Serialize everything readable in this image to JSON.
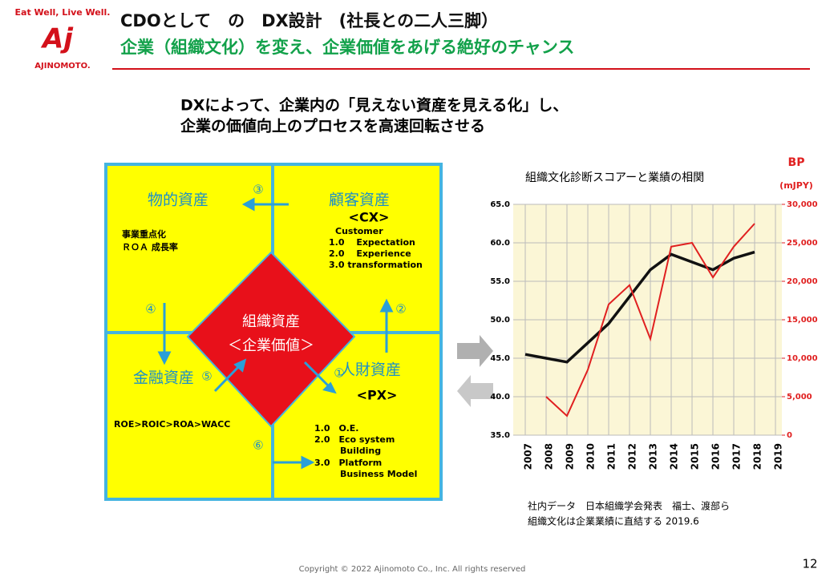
{
  "header": {
    "tagline": "Eat Well, Live Well.",
    "logo_mark": "Aj",
    "logo_text": "AJINOMOTO.",
    "title": "CDOとして　の　DX設計　(社長との二人三脚）",
    "subtitle": "企業（組織文化）を変え、企業価値をあげる絶好のチャンス"
  },
  "lead": [
    "DXによって、企業内の「見えない資産を見える化」し、",
    "企業の価値向上のプロセスを高速回転させる"
  ],
  "diagram": {
    "physical": "物的資産",
    "customer": "顧客資産",
    "finance": "金融資産",
    "human": "人財資産",
    "center": "組織資産",
    "center_sub": "＜企業価値＞",
    "steps": [
      "①",
      "②",
      "③",
      "④",
      "⑤",
      "⑥"
    ],
    "physical_notes": [
      "事業重点化",
      "ＲＯＡ 成長率"
    ],
    "cx": "<CX>",
    "cx_notes": [
      "Customer",
      "1.0　 Expectation",
      "2.0　 Experience",
      "3.0  transformation"
    ],
    "finance_note": "ROE>ROIC>ROA>WACC",
    "px": "<PX>",
    "px_notes": [
      "1.0　O.E.",
      "2.0　Eco system",
      "Building",
      "3.0　Platform",
      "Business Model"
    ]
  },
  "chart": {
    "title": "組織文化診断スコアーと業績の相関",
    "y2_label": "BP",
    "y2_unit": "(mJPY)",
    "categories": [
      "2007",
      "2008",
      "2009",
      "2010",
      "2011",
      "2012",
      "2013",
      "2014",
      "2015",
      "2016",
      "2017",
      "2018",
      "2019"
    ],
    "ylim": [
      35,
      65
    ],
    "yticks": [
      {
        "value": 35,
        "label": "35.0"
      },
      {
        "value": 40,
        "label": "40.0"
      },
      {
        "value": 45,
        "label": "45.0"
      },
      {
        "value": 50,
        "label": "50.0"
      },
      {
        "value": 55,
        "label": "55.0"
      },
      {
        "value": 60,
        "label": "60.0"
      },
      {
        "value": 65,
        "label": "65.0"
      }
    ],
    "y2lim": [
      0,
      30000
    ],
    "y2ticks": [
      0,
      {
        "value": 5000,
        "label": "5,000"
      },
      {
        "value": 10000,
        "label": "10,000"
      },
      {
        "value": 15000,
        "label": "15,000"
      },
      {
        "value": 20000,
        "label": "20,000"
      },
      {
        "value": 25000,
        "label": "25,000"
      },
      {
        "value": 30000,
        "label": "30,000"
      }
    ],
    "series": [
      {
        "color": "#111111",
        "values": [
          45.5,
          45,
          44.5,
          47,
          49.5,
          53,
          56.5,
          58.5,
          57.5,
          56.5,
          58,
          58.8,
          null
        ]
      },
      {
        "color": "#e02020",
        "axis": "y2",
        "values": [
          null,
          5000,
          2500,
          8500,
          17000,
          19500,
          12500,
          24500,
          25000,
          20500,
          24500,
          27500,
          null
        ]
      }
    ],
    "source": [
      "社内データ　日本組織学会発表　福士、渡部ら",
      "組織文化は企業業績に直結する 2019.6"
    ]
  },
  "footer": {
    "copyright": "Copyright © 2022 Ajinomoto Co., Inc. All rights reserved",
    "page": "12"
  }
}
